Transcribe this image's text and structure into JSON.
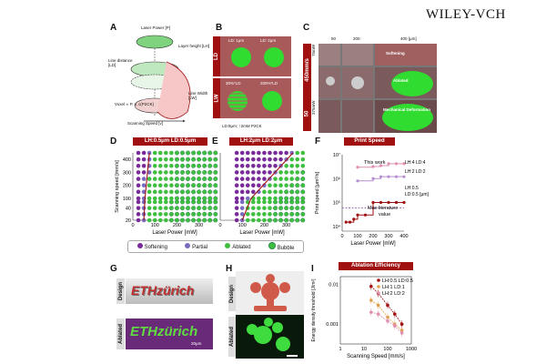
{
  "publisher": "WILEY-VCH",
  "panels": {
    "A": {
      "letter": "A",
      "labels": {
        "laser_power": "Laser Power [P]",
        "layer_height": "Layer height [LH]",
        "line_distance": "Line distance [LD]",
        "line_width": "Line Width [LW]",
        "voxel": "Voxel ∝ P, v, c(P2CK)",
        "scan_speed": "Scanning Speed [v]"
      }
    },
    "B": {
      "letter": "B",
      "ld_tag": "LD",
      "lw_tag": "LW",
      "ld1": "LD: 1μm",
      "ld2": "LD: 2μm",
      "pct30": "30%*LD",
      "pct200": "200%*LD",
      "caption": "LD:8μm; ↑2mM P2CK"
    },
    "C": {
      "letter": "C",
      "col_labels": [
        "50",
        "200",
        "400 [μm]"
      ],
      "speed": "450mm/s",
      "powers": [
        "75mW",
        "375mW"
      ],
      "row_speed2": "50",
      "softening": "Softening",
      "ablated": "Ablated",
      "mech": "Mechanical Deformation"
    },
    "D": {
      "letter": "D",
      "banner": "LH:0.5μm LD:0.5μm"
    },
    "E": {
      "letter": "E",
      "banner": "LH:2μm LD:2μm"
    },
    "F": {
      "letter": "F",
      "banner": "Print Speed",
      "ylabel": "Print speed [μm³/s]",
      "xlabel": "Laser Power [mW]",
      "this_work": "This work",
      "max_lit": "Max literature value",
      "ann1": "LH:4 LD:4",
      "ann2": "LH:2 LD:2",
      "ann3": "LH:0.5 LD:0.5 [μm]"
    },
    "G": {
      "letter": "G",
      "design": "Design",
      "ablated": "Ablated",
      "logo": "ETHzürich",
      "scale": "20μm"
    },
    "H": {
      "letter": "H",
      "design": "Design",
      "ablated": "Ablated"
    },
    "I": {
      "letter": "I",
      "banner": "Ablation Efficiency",
      "ylabel": "Energy density threshold [J/m²]",
      "xlabel": "Scanning Speed [mm/s]",
      "legend": [
        "LH:0.5 LD:0.5",
        "LH:1 LD:1",
        "LH:2 LD:2"
      ]
    }
  },
  "legend_DE": {
    "softening": "Softening",
    "partial": "Partial",
    "ablated": "Ablated",
    "bubble": "Bubble"
  },
  "colors": {
    "red": "#a01010",
    "purple": "#7a2b9a",
    "green": "#3fbf3f",
    "lightpurple": "#b48ed0",
    "orange": "#e0a050",
    "pink": "#e08fb0"
  },
  "chart_data": [
    {
      "type": "scatter",
      "id": "D",
      "title": "LH:0.5μm LD:0.5μm",
      "xlabel": "Laser Power [mW]",
      "ylabel": "Scanning speed [mm/s]",
      "xticks": [
        0,
        100,
        200,
        300
      ],
      "yticks": [
        20,
        40,
        100,
        200,
        300,
        400
      ],
      "xlim": [
        0,
        380
      ],
      "powers": [
        25,
        50,
        75,
        100,
        125,
        150,
        175,
        200,
        225,
        250,
        275,
        300,
        325,
        350,
        375
      ],
      "speeds": [
        20,
        30,
        40,
        50,
        100,
        150,
        200,
        250,
        300,
        350,
        400,
        450
      ],
      "threshold": [
        {
          "x": 50,
          "y": 20
        },
        {
          "x": 55,
          "y": 100
        },
        {
          "x": 75,
          "y": 450
        }
      ],
      "categories": [
        "Softening",
        "Partial",
        "Ablated",
        "Bubble"
      ]
    },
    {
      "type": "scatter",
      "id": "E",
      "title": "LH:2μm LD:2μm",
      "xlabel": "Laser Power [mW]",
      "ylabel": "",
      "xticks": [
        0,
        100,
        200,
        300
      ],
      "yticks": [],
      "powers": [
        75,
        100,
        125,
        150,
        175,
        200,
        225,
        250,
        275,
        300,
        325,
        350,
        375
      ],
      "speeds": [
        20,
        30,
        40,
        50,
        100,
        150,
        200,
        250,
        300,
        350,
        400,
        450
      ],
      "threshold": [
        {
          "x": 100,
          "y": 20
        },
        {
          "x": 140,
          "y": 100
        },
        {
          "x": 330,
          "y": 450
        }
      ]
    },
    {
      "type": "line",
      "id": "F",
      "title": "Print Speed",
      "xlabel": "Laser Power [mW]",
      "ylabel": "Print speed [μm³/s]",
      "xticks": [
        0,
        100,
        200,
        300,
        400
      ],
      "ytick_labels": [
        "10⁴",
        "10⁵",
        "10⁶",
        "10⁷"
      ],
      "series": [
        {
          "name": "LH:4 LD:4",
          "x": [
            100,
            200,
            250,
            300,
            350,
            400
          ],
          "y": [
            3000000,
            3200000,
            3500000,
            4200000,
            4200000,
            4200000
          ]
        },
        {
          "name": "LH:2 LD:2",
          "x": [
            100,
            200,
            250,
            300,
            350,
            400
          ],
          "y": [
            800000,
            1000000,
            1200000,
            1200000,
            1200000,
            1200000
          ]
        },
        {
          "name": "LH:0.5 LD:0.5",
          "x": [
            25,
            50,
            75,
            100,
            150,
            200,
            250,
            300,
            350,
            400
          ],
          "y": [
            15000,
            15000,
            20000,
            30000,
            30000,
            100000,
            100000,
            100000,
            100000,
            100000
          ]
        }
      ],
      "max_literature": 60000
    },
    {
      "type": "scatter",
      "id": "I",
      "title": "Ablation Efficiency",
      "xlabel": "Scanning Speed [mm/s]",
      "ylabel": "Energy density threshold [J/m²]",
      "xtick_labels": [
        "1",
        "10",
        "100",
        "1000"
      ],
      "ytick_labels": [
        "0.01",
        "0.001"
      ],
      "series": [
        {
          "name": "LH:0.5 LD:0.5",
          "x": [
            20,
            40,
            100,
            200,
            400
          ],
          "y": [
            0.009,
            0.006,
            0.003,
            0.0018,
            0.001
          ]
        },
        {
          "name": "LH:1 LD:1",
          "x": [
            20,
            40,
            100,
            200,
            400
          ],
          "y": [
            0.004,
            0.003,
            0.0015,
            0.001,
            0.0007
          ]
        },
        {
          "name": "LH:2 LD:2",
          "x": [
            20,
            40,
            100,
            200,
            400
          ],
          "y": [
            0.002,
            0.0018,
            0.0012,
            0.0009,
            0.0006
          ]
        }
      ]
    }
  ]
}
